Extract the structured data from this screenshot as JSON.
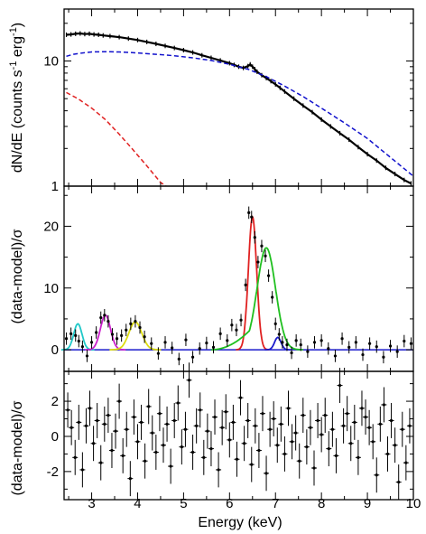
{
  "figure": {
    "xlabel": "Energy (keV)",
    "x_ticks": [
      "3",
      "4",
      "5",
      "6",
      "7",
      "8",
      "9",
      "10"
    ],
    "xlim": [
      2.4,
      10.0
    ]
  },
  "chart_data": [
    {
      "type": "line",
      "panel": "top",
      "ylabel": "dN/dE (counts s^-1 erg^-1)",
      "ylabel_parts": {
        "main": "dN/dE (counts s",
        "sup1": "-1",
        "mid": " erg",
        "sup2": "-1",
        "end": ")"
      },
      "yscale": "log",
      "ylim": [
        1,
        26
      ],
      "y_ticks": [
        "1",
        "10"
      ],
      "series": [
        {
          "role": "data",
          "color": "#000000",
          "x": [
            2.45,
            2.55,
            2.65,
            2.75,
            2.85,
            2.95,
            3.05,
            3.15,
            3.25,
            3.4,
            3.6,
            3.8,
            4.0,
            4.2,
            4.4,
            4.6,
            4.8,
            5.0,
            5.2,
            5.4,
            5.6,
            5.8,
            6.0,
            6.1,
            6.2,
            6.3,
            6.4,
            6.45,
            6.5,
            6.55,
            6.6,
            6.7,
            6.8,
            6.9,
            7.0,
            7.1,
            7.2,
            7.4,
            7.6,
            7.8,
            8.0,
            8.2,
            8.4,
            8.6,
            8.8,
            9.0,
            9.2,
            9.4,
            9.6,
            9.8,
            9.95
          ],
          "y": [
            16.2,
            16.3,
            16.5,
            16.6,
            16.4,
            16.5,
            16.3,
            16.2,
            16.0,
            15.8,
            15.5,
            15.1,
            14.7,
            14.2,
            13.7,
            13.2,
            12.7,
            12.2,
            11.7,
            11.1,
            10.6,
            10.1,
            9.6,
            9.3,
            9.0,
            8.8,
            9.1,
            9.4,
            9.0,
            8.6,
            8.2,
            7.7,
            7.3,
            6.9,
            6.5,
            6.1,
            5.7,
            5.0,
            4.4,
            3.9,
            3.4,
            3.0,
            2.65,
            2.35,
            2.05,
            1.8,
            1.6,
            1.4,
            1.25,
            1.12,
            1.05
          ]
        },
        {
          "role": "continuum",
          "color": "#1010cc",
          "x": [
            2.45,
            2.6,
            2.8,
            3.0,
            3.2,
            3.4,
            3.6,
            3.8,
            4.0,
            4.4,
            4.8,
            5.2,
            5.6,
            6.0,
            6.4,
            6.8,
            7.2,
            7.6,
            8.0,
            8.5,
            9.0,
            9.5,
            10.0
          ],
          "y": [
            10.9,
            11.3,
            11.6,
            11.8,
            11.85,
            11.85,
            11.8,
            11.7,
            11.6,
            11.3,
            11.0,
            10.6,
            10.1,
            9.4,
            8.6,
            7.5,
            6.3,
            5.2,
            4.2,
            3.2,
            2.4,
            1.7,
            1.2
          ]
        },
        {
          "role": "soft component",
          "color": "#e02020",
          "x": [
            2.45,
            2.7,
            3.0,
            3.3,
            3.6,
            3.9,
            4.2,
            4.5,
            4.62
          ],
          "y": [
            5.6,
            5.0,
            4.2,
            3.4,
            2.6,
            1.95,
            1.45,
            1.07,
            0.96
          ]
        }
      ]
    },
    {
      "type": "line",
      "panel": "middle",
      "ylabel": "(data-model)/σ",
      "ylim": [
        -3.5,
        26.5
      ],
      "y_ticks": [
        "0",
        "10",
        "20"
      ],
      "data_points": {
        "x": [
          2.45,
          2.55,
          2.65,
          2.72,
          2.8,
          2.9,
          3.0,
          3.1,
          3.2,
          3.28,
          3.36,
          3.45,
          3.55,
          3.65,
          3.75,
          3.85,
          3.95,
          4.05,
          4.15,
          4.3,
          4.45,
          4.6,
          4.75,
          4.9,
          5.05,
          5.2,
          5.35,
          5.5,
          5.65,
          5.8,
          5.95,
          6.05,
          6.15,
          6.25,
          6.35,
          6.42,
          6.48,
          6.55,
          6.62,
          6.7,
          6.78,
          6.85,
          6.93,
          7.0,
          7.08,
          7.15,
          7.25,
          7.35,
          7.45,
          7.55,
          7.7,
          7.85,
          8.0,
          8.15,
          8.3,
          8.45,
          8.6,
          8.75,
          8.9,
          9.05,
          9.2,
          9.35,
          9.5,
          9.65,
          9.8,
          9.95
        ],
        "y": [
          1.8,
          2.6,
          2.3,
          1.4,
          0.5,
          -1.0,
          1.2,
          2.8,
          5.2,
          5.6,
          4.6,
          2.5,
          1.8,
          2.3,
          3.2,
          4.2,
          4.6,
          3.6,
          2.1,
          1.0,
          -0.6,
          1.2,
          0.3,
          -1.5,
          1.6,
          -1.2,
          0.2,
          1.1,
          0.4,
          2.6,
          1.5,
          4.0,
          3.2,
          4.8,
          10.5,
          22.2,
          21.5,
          18.2,
          14.2,
          16.8,
          15.2,
          12.0,
          8.5,
          4.2,
          2.5,
          1.2,
          0.8,
          -0.5,
          1.5,
          0.8,
          -0.3,
          1.2,
          1.5,
          0.2,
          -1.0,
          1.8,
          0.4,
          1.2,
          -0.8,
          1.0,
          0.5,
          -1.2,
          0.6,
          -0.3,
          1.4,
          1.0
        ],
        "err": 1
      },
      "series": [
        {
          "name": "",
          "color": "#20c8c8",
          "peak": 2.7,
          "amplitude": 4.2,
          "sigma": 0.09
        },
        {
          "name": "",
          "color": "#cc20cc",
          "peak": 3.3,
          "amplitude": 5.6,
          "sigma": 0.11
        },
        {
          "name": "",
          "color": "#dddd10",
          "peak": 3.95,
          "amplitude": 4.5,
          "sigma": 0.14
        },
        {
          "name": "",
          "color": "#e02020",
          "peak": 6.5,
          "amplitude": 21.5,
          "sigma": 0.09
        },
        {
          "name": "",
          "color": "#20c020",
          "peak": 6.8,
          "amplitude": 16.5,
          "sigma": 0.2,
          "low_tail": [
            5.6,
            6.5
          ]
        },
        {
          "name": "",
          "color": "#1a1acc",
          "peak": 7.05,
          "amplitude": 2.0,
          "sigma": 0.07
        }
      ]
    },
    {
      "type": "scatter",
      "panel": "bottom",
      "ylabel": "(data-model)/σ",
      "ylim": [
        -3.6,
        3.7
      ],
      "y_ticks": [
        "-2",
        "0",
        "2"
      ],
      "x": [
        2.48,
        2.56,
        2.64,
        2.72,
        2.8,
        2.88,
        2.96,
        3.04,
        3.12,
        3.2,
        3.28,
        3.36,
        3.44,
        3.52,
        3.6,
        3.68,
        3.76,
        3.84,
        3.92,
        4.0,
        4.08,
        4.16,
        4.24,
        4.32,
        4.4,
        4.48,
        4.56,
        4.64,
        4.72,
        4.8,
        4.88,
        4.96,
        5.04,
        5.12,
        5.2,
        5.28,
        5.36,
        5.44,
        5.52,
        5.6,
        5.68,
        5.76,
        5.84,
        5.92,
        6.0,
        6.08,
        6.16,
        6.24,
        6.32,
        6.4,
        6.48,
        6.56,
        6.64,
        6.72,
        6.8,
        6.88,
        6.96,
        7.04,
        7.12,
        7.2,
        7.28,
        7.36,
        7.44,
        7.52,
        7.6,
        7.68,
        7.76,
        7.84,
        7.92,
        8.0,
        8.08,
        8.16,
        8.24,
        8.32,
        8.4,
        8.48,
        8.56,
        8.64,
        8.72,
        8.8,
        8.88,
        8.96,
        9.04,
        9.12,
        9.2,
        9.28,
        9.36,
        9.44,
        9.52,
        9.6,
        9.68,
        9.76,
        9.84,
        9.92
      ],
      "y": [
        1.5,
        0.5,
        -1.2,
        0.8,
        -1.9,
        0.6,
        1.6,
        -0.4,
        0.9,
        -1.5,
        0.7,
        1.2,
        -0.8,
        0.3,
        2.0,
        -1.1,
        0.4,
        -2.4,
        1.1,
        -0.3,
        0.8,
        -1.4,
        1.7,
        0.2,
        -0.9,
        1.3,
        -0.5,
        0.7,
        -1.7,
        0.9,
        1.9,
        -0.6,
        0.4,
        3.2,
        -0.9,
        0.6,
        1.5,
        -1.2,
        0.3,
        -0.7,
        1.1,
        -1.9,
        0.5,
        1.4,
        -0.2,
        0.8,
        -1.3,
        2.2,
        -0.4,
        0.9,
        -1.6,
        0.6,
        -0.8,
        1.3,
        -2.1,
        0.4,
        1.0,
        -0.5,
        0.7,
        -1.0,
        1.6,
        -0.3,
        0.2,
        -1.4,
        1.2,
        -0.6,
        0.5,
        -1.8,
        0.9,
        0.1,
        1.2,
        -0.7,
        0.4,
        -1.1,
        2.9,
        0.6,
        1.3,
        -0.4,
        0.8,
        -1.2,
        1.6,
        1.1,
        0.5,
        -0.3,
        -2.2,
        0.7,
        1.8,
        -1.0,
        0.9,
        -0.5,
        -2.6,
        0.4,
        -1.5,
        0.6
      ],
      "err": 1
    }
  ]
}
